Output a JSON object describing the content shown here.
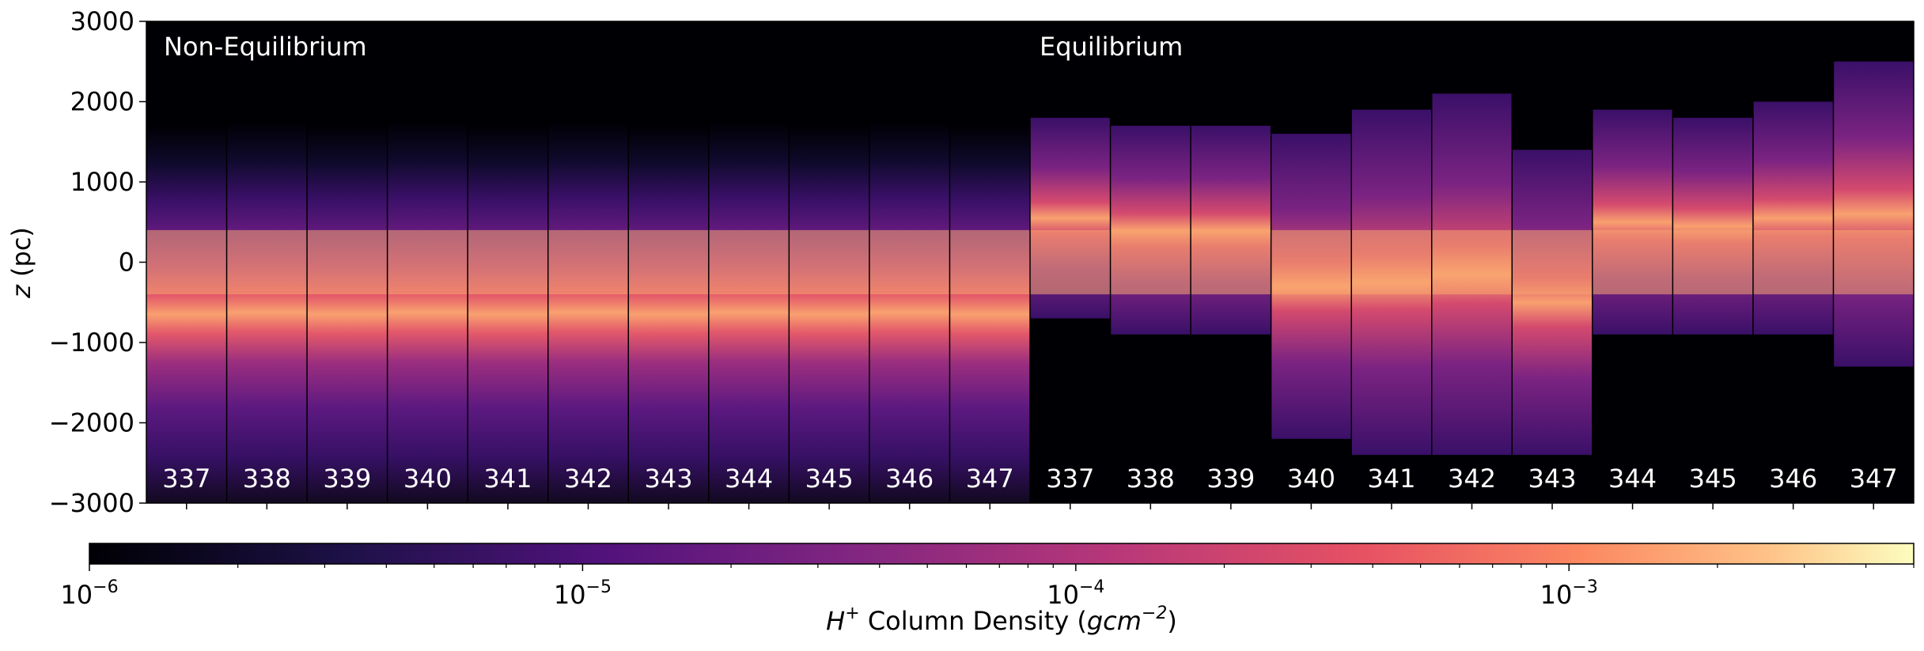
{
  "chart_data": {
    "type": "heatmap",
    "ylabel": "z (pc)",
    "ylim": [
      -3000,
      3000
    ],
    "yticks": [
      {
        "value": 3000,
        "label": "3000"
      },
      {
        "value": 2000,
        "label": "2000"
      },
      {
        "value": 1000,
        "label": "1000"
      },
      {
        "value": 0,
        "label": "0"
      },
      {
        "value": -1000,
        "label": "−1000"
      },
      {
        "value": -2000,
        "label": "−2000"
      },
      {
        "value": -3000,
        "label": "−3000"
      }
    ],
    "groups": [
      {
        "name": "Non-Equilibrium",
        "snapshots": [
          "337",
          "338",
          "339",
          "340",
          "341",
          "342",
          "343",
          "344",
          "345",
          "346",
          "347"
        ]
      },
      {
        "name": "Equilibrium",
        "snapshots": [
          "337",
          "338",
          "339",
          "340",
          "341",
          "342",
          "343",
          "344",
          "345",
          "346",
          "347"
        ]
      }
    ],
    "colorbar": {
      "label_prefix": "H",
      "label_sup": "+",
      "label_text": " Column Density (",
      "label_unit": "gcm",
      "label_unit_sup": "−2",
      "label_suffix": ")",
      "scale": "log",
      "range": [
        1e-06,
        0.005
      ],
      "colormap": "magma",
      "ticks": [
        {
          "value": 1e-06,
          "base": "10",
          "exp": "−6"
        },
        {
          "value": 1e-05,
          "base": "10",
          "exp": "−5"
        },
        {
          "value": 0.0001,
          "base": "10",
          "exp": "−4"
        },
        {
          "value": 0.001,
          "base": "10",
          "exp": "−3"
        }
      ],
      "colors": [
        "#000004",
        "#2c115f",
        "#721f81",
        "#b73779",
        "#f1605d",
        "#feb078",
        "#fcfdbf"
      ]
    },
    "panel_profiles": {
      "non_equilibrium": {
        "upper_extent": [
          1700,
          1750,
          1700,
          1750,
          1700,
          1750,
          1700,
          1750,
          1700,
          1750,
          1700
        ],
        "lower_extent": [
          -3000,
          -3000,
          -3000,
          -3000,
          -3000,
          -3000,
          -3000,
          -3000,
          -3000,
          -3000,
          -3000
        ]
      },
      "equilibrium": {
        "upper_extent": [
          1800,
          1700,
          1700,
          1600,
          1900,
          2100,
          1400,
          1900,
          1800,
          2000,
          2500
        ],
        "lower_extent": [
          -700,
          -900,
          -900,
          -2200,
          -2400,
          -2400,
          -2400,
          -900,
          -900,
          -900,
          -1300
        ]
      }
    }
  }
}
